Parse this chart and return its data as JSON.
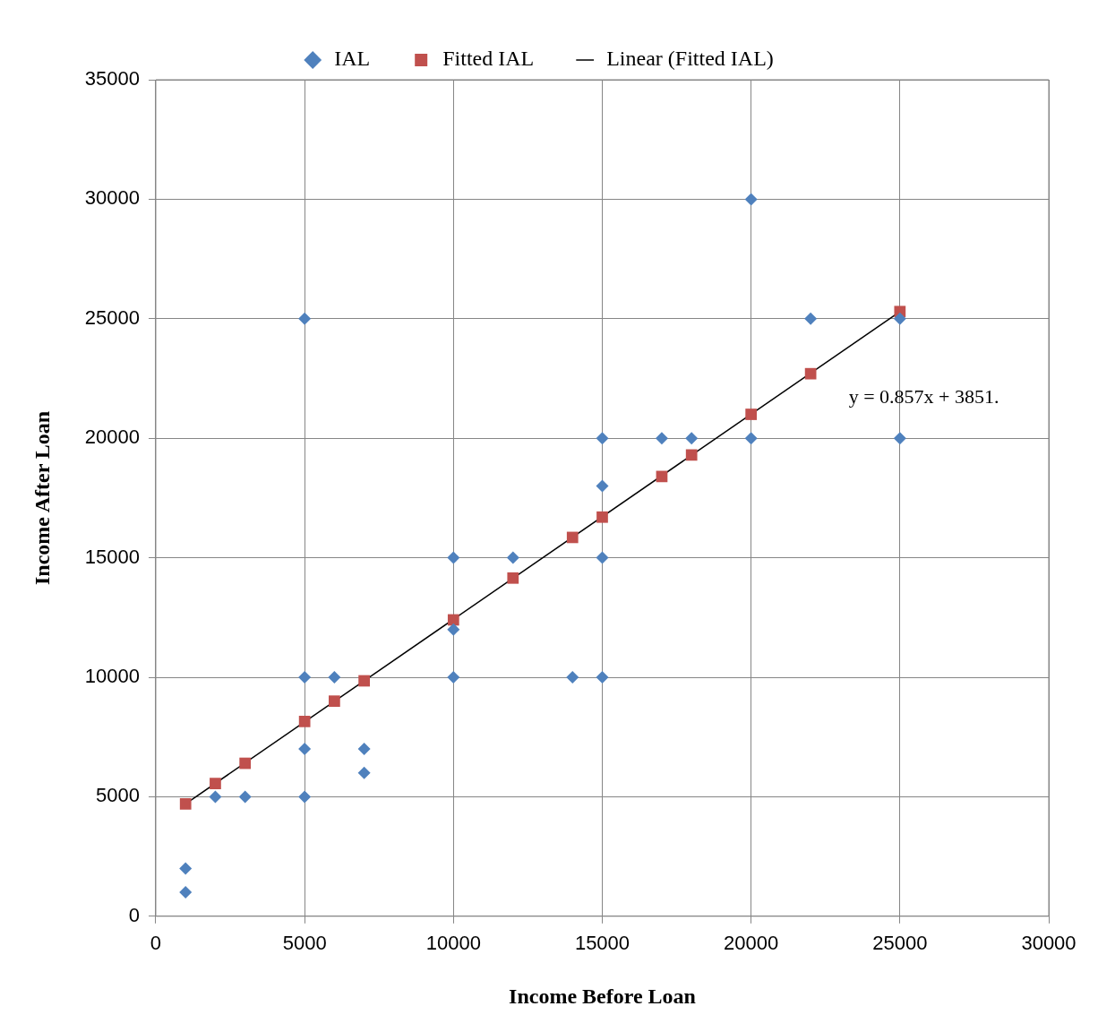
{
  "chart_data": {
    "type": "scatter",
    "xlabel": "Income Before Loan",
    "ylabel": "Income After Loan",
    "xlim": [
      0,
      30000
    ],
    "xticks": [
      0,
      5000,
      10000,
      15000,
      20000,
      25000,
      30000
    ],
    "ylim": [
      0,
      35000
    ],
    "yticks": [
      0,
      5000,
      10000,
      15000,
      20000,
      25000,
      30000,
      35000
    ],
    "grid": true,
    "legend": "top",
    "series": [
      {
        "name": "IAL",
        "type": "scatter",
        "marker": "diamond",
        "color": "#4f81bd",
        "x": [
          1000,
          1000,
          2000,
          3000,
          5000,
          5000,
          5000,
          5000,
          6000,
          7000,
          7000,
          10000,
          10000,
          10000,
          12000,
          14000,
          15000,
          15000,
          15000,
          15000,
          17000,
          18000,
          20000,
          20000,
          22000,
          25000,
          25000
        ],
        "values": [
          1000,
          2000,
          5000,
          5000,
          5000,
          7000,
          10000,
          25000,
          10000,
          7000,
          6000,
          10000,
          12000,
          15000,
          15000,
          10000,
          10000,
          15000,
          18000,
          20000,
          20000,
          20000,
          20000,
          30000,
          25000,
          25000,
          20000
        ]
      },
      {
        "name": "Fitted IAL",
        "type": "scatter",
        "marker": "square",
        "color": "#c0504d",
        "x": [
          1000,
          2000,
          3000,
          5000,
          6000,
          7000,
          10000,
          12000,
          14000,
          15000,
          17000,
          18000,
          20000,
          22000,
          25000
        ],
        "values": [
          4700,
          5550,
          6400,
          8150,
          9000,
          9850,
          12400,
          14150,
          15850,
          16700,
          18400,
          19300,
          21000,
          22700,
          25300
        ]
      },
      {
        "name": "Linear (Fitted IAL)",
        "type": "line",
        "marker": "none",
        "line_style": "solid",
        "color": "#000000",
        "x": [
          1000,
          25000
        ],
        "values": [
          4700,
          25300
        ]
      }
    ],
    "annotations": [
      "y = 0.857x + 3851."
    ]
  }
}
